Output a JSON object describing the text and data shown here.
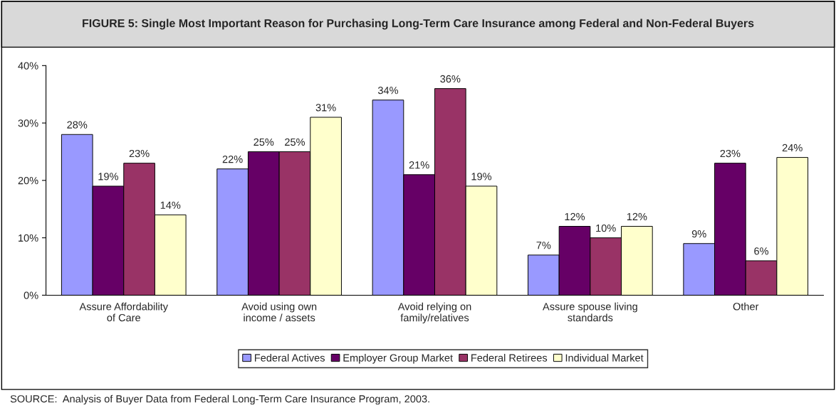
{
  "chart_data": {
    "type": "bar",
    "title": "FIGURE 5: Single Most Important Reason for Purchasing Long-Term Care Insurance among Federal and Non-Federal Buyers",
    "categories": [
      "Assure Affordability\nof Care",
      "Avoid using own\nincome / assets",
      "Avoid relying on\nfamily/relatives",
      "Assure spouse living\nstandards",
      "Other"
    ],
    "series": [
      {
        "name": "Federal Actives",
        "color": "#9999ff",
        "values": [
          28,
          22,
          34,
          7,
          9
        ],
        "value_labels": [
          "28%",
          "22%",
          "34%",
          "7%",
          "9%"
        ]
      },
      {
        "name": "Employer Group Market",
        "color": "#660066",
        "values": [
          19,
          25,
          21,
          12,
          23
        ],
        "value_labels": [
          "19%",
          "25%",
          "21%",
          "12%",
          "23%"
        ]
      },
      {
        "name": "Federal Retirees",
        "color": "#993366",
        "values": [
          23,
          25,
          36,
          10,
          6
        ],
        "value_labels": [
          "23%",
          "25%",
          "36%",
          "10%",
          "6%"
        ]
      },
      {
        "name": "Individual Market",
        "color": "#ffffcc",
        "values": [
          14,
          31,
          19,
          12,
          24
        ],
        "value_labels": [
          "14%",
          "31%",
          "19%",
          "12%",
          "24%"
        ]
      }
    ],
    "ylim": [
      0,
      40
    ],
    "yticks": [
      {
        "value": 0,
        "label": "0%"
      },
      {
        "value": 10,
        "label": "10%"
      },
      {
        "value": 20,
        "label": "20%"
      },
      {
        "value": 30,
        "label": "30%"
      },
      {
        "value": 40,
        "label": "40%"
      }
    ],
    "legend": "bottom",
    "grid": false,
    "annotations": [
      "SOURCE:  Analysis of Buyer Data from Federal Long-Term Care Insurance Program, 2003."
    ]
  }
}
